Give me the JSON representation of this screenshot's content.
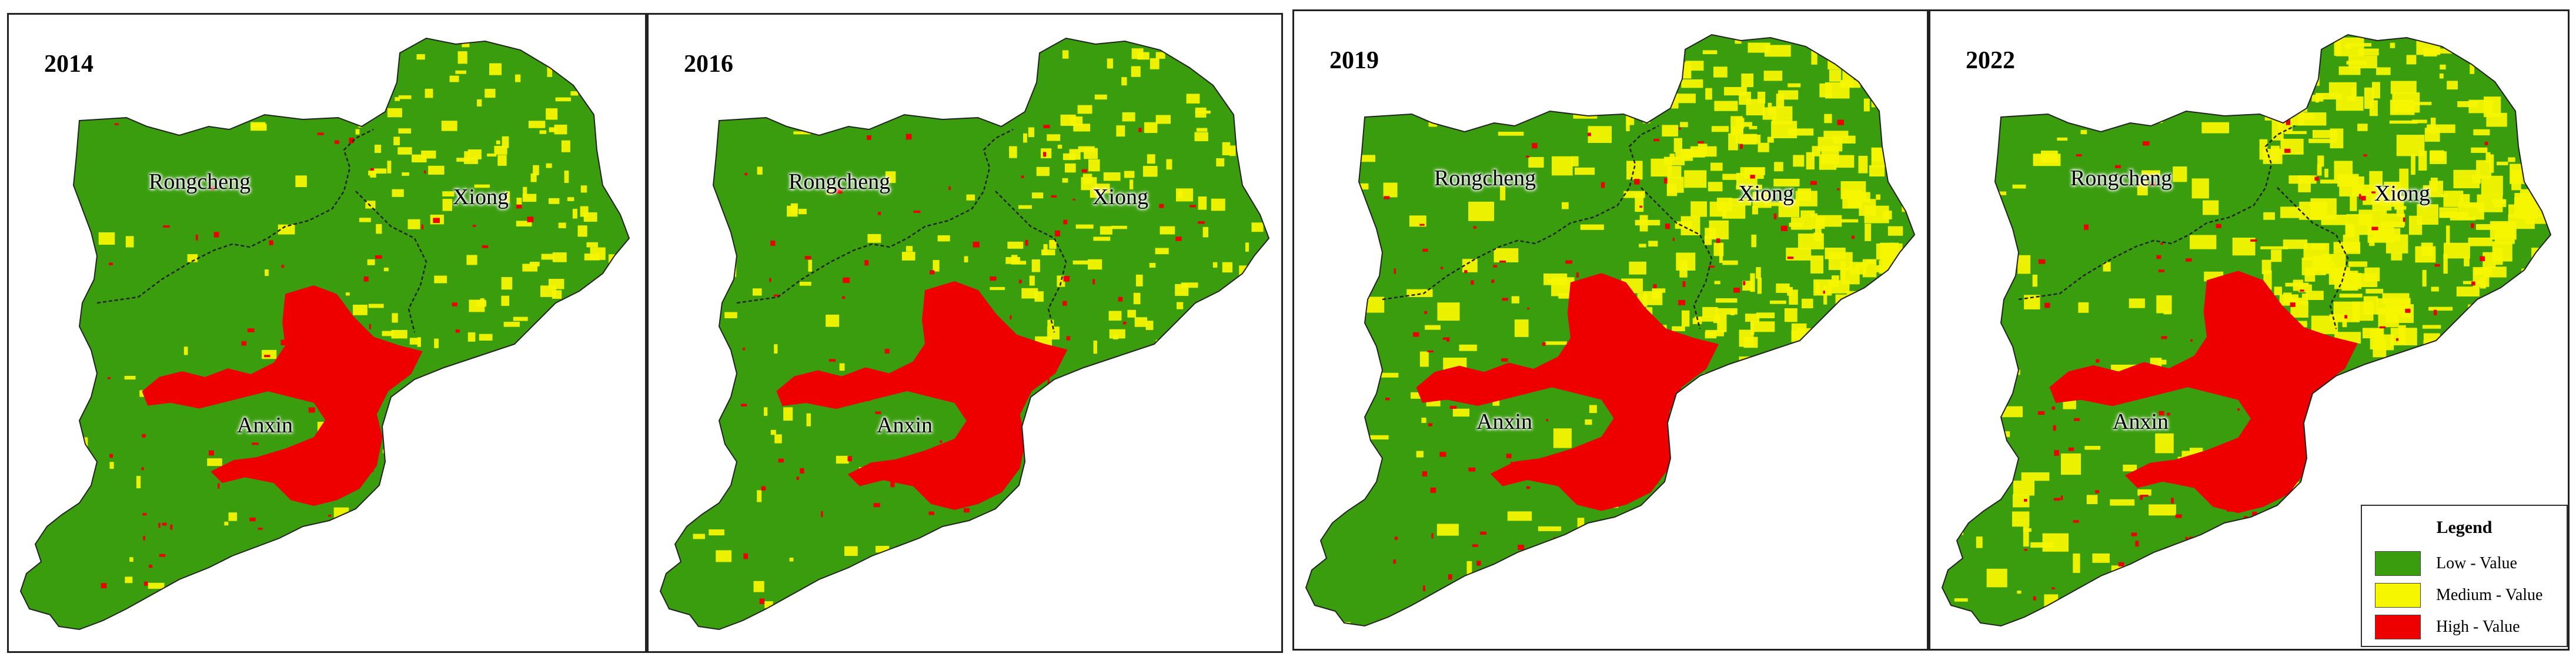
{
  "colors": {
    "low": "#3a9d0e",
    "medium": "#f6f600",
    "high": "#ee0000",
    "boundary": "#222222"
  },
  "panels": [
    {
      "year": "2014",
      "high_extent": 0.62,
      "medium_extent": 0.22
    },
    {
      "year": "2016",
      "high_extent": 0.8,
      "medium_extent": 0.26
    },
    {
      "year": "2019",
      "high_extent": 1.0,
      "medium_extent": 0.62
    },
    {
      "year": "2022",
      "high_extent": 1.1,
      "medium_extent": 0.72
    }
  ],
  "regions": {
    "rongcheng": "Rongcheng",
    "xiong": "Xiong",
    "anxin": "Anxin"
  },
  "legend": {
    "title": "Legend",
    "items": [
      {
        "label": "Low - Value",
        "color": "#3a9d0e"
      },
      {
        "label": "Medium - Value",
        "color": "#f6f600"
      },
      {
        "label": "High - Value",
        "color": "#ee0000"
      }
    ]
  }
}
